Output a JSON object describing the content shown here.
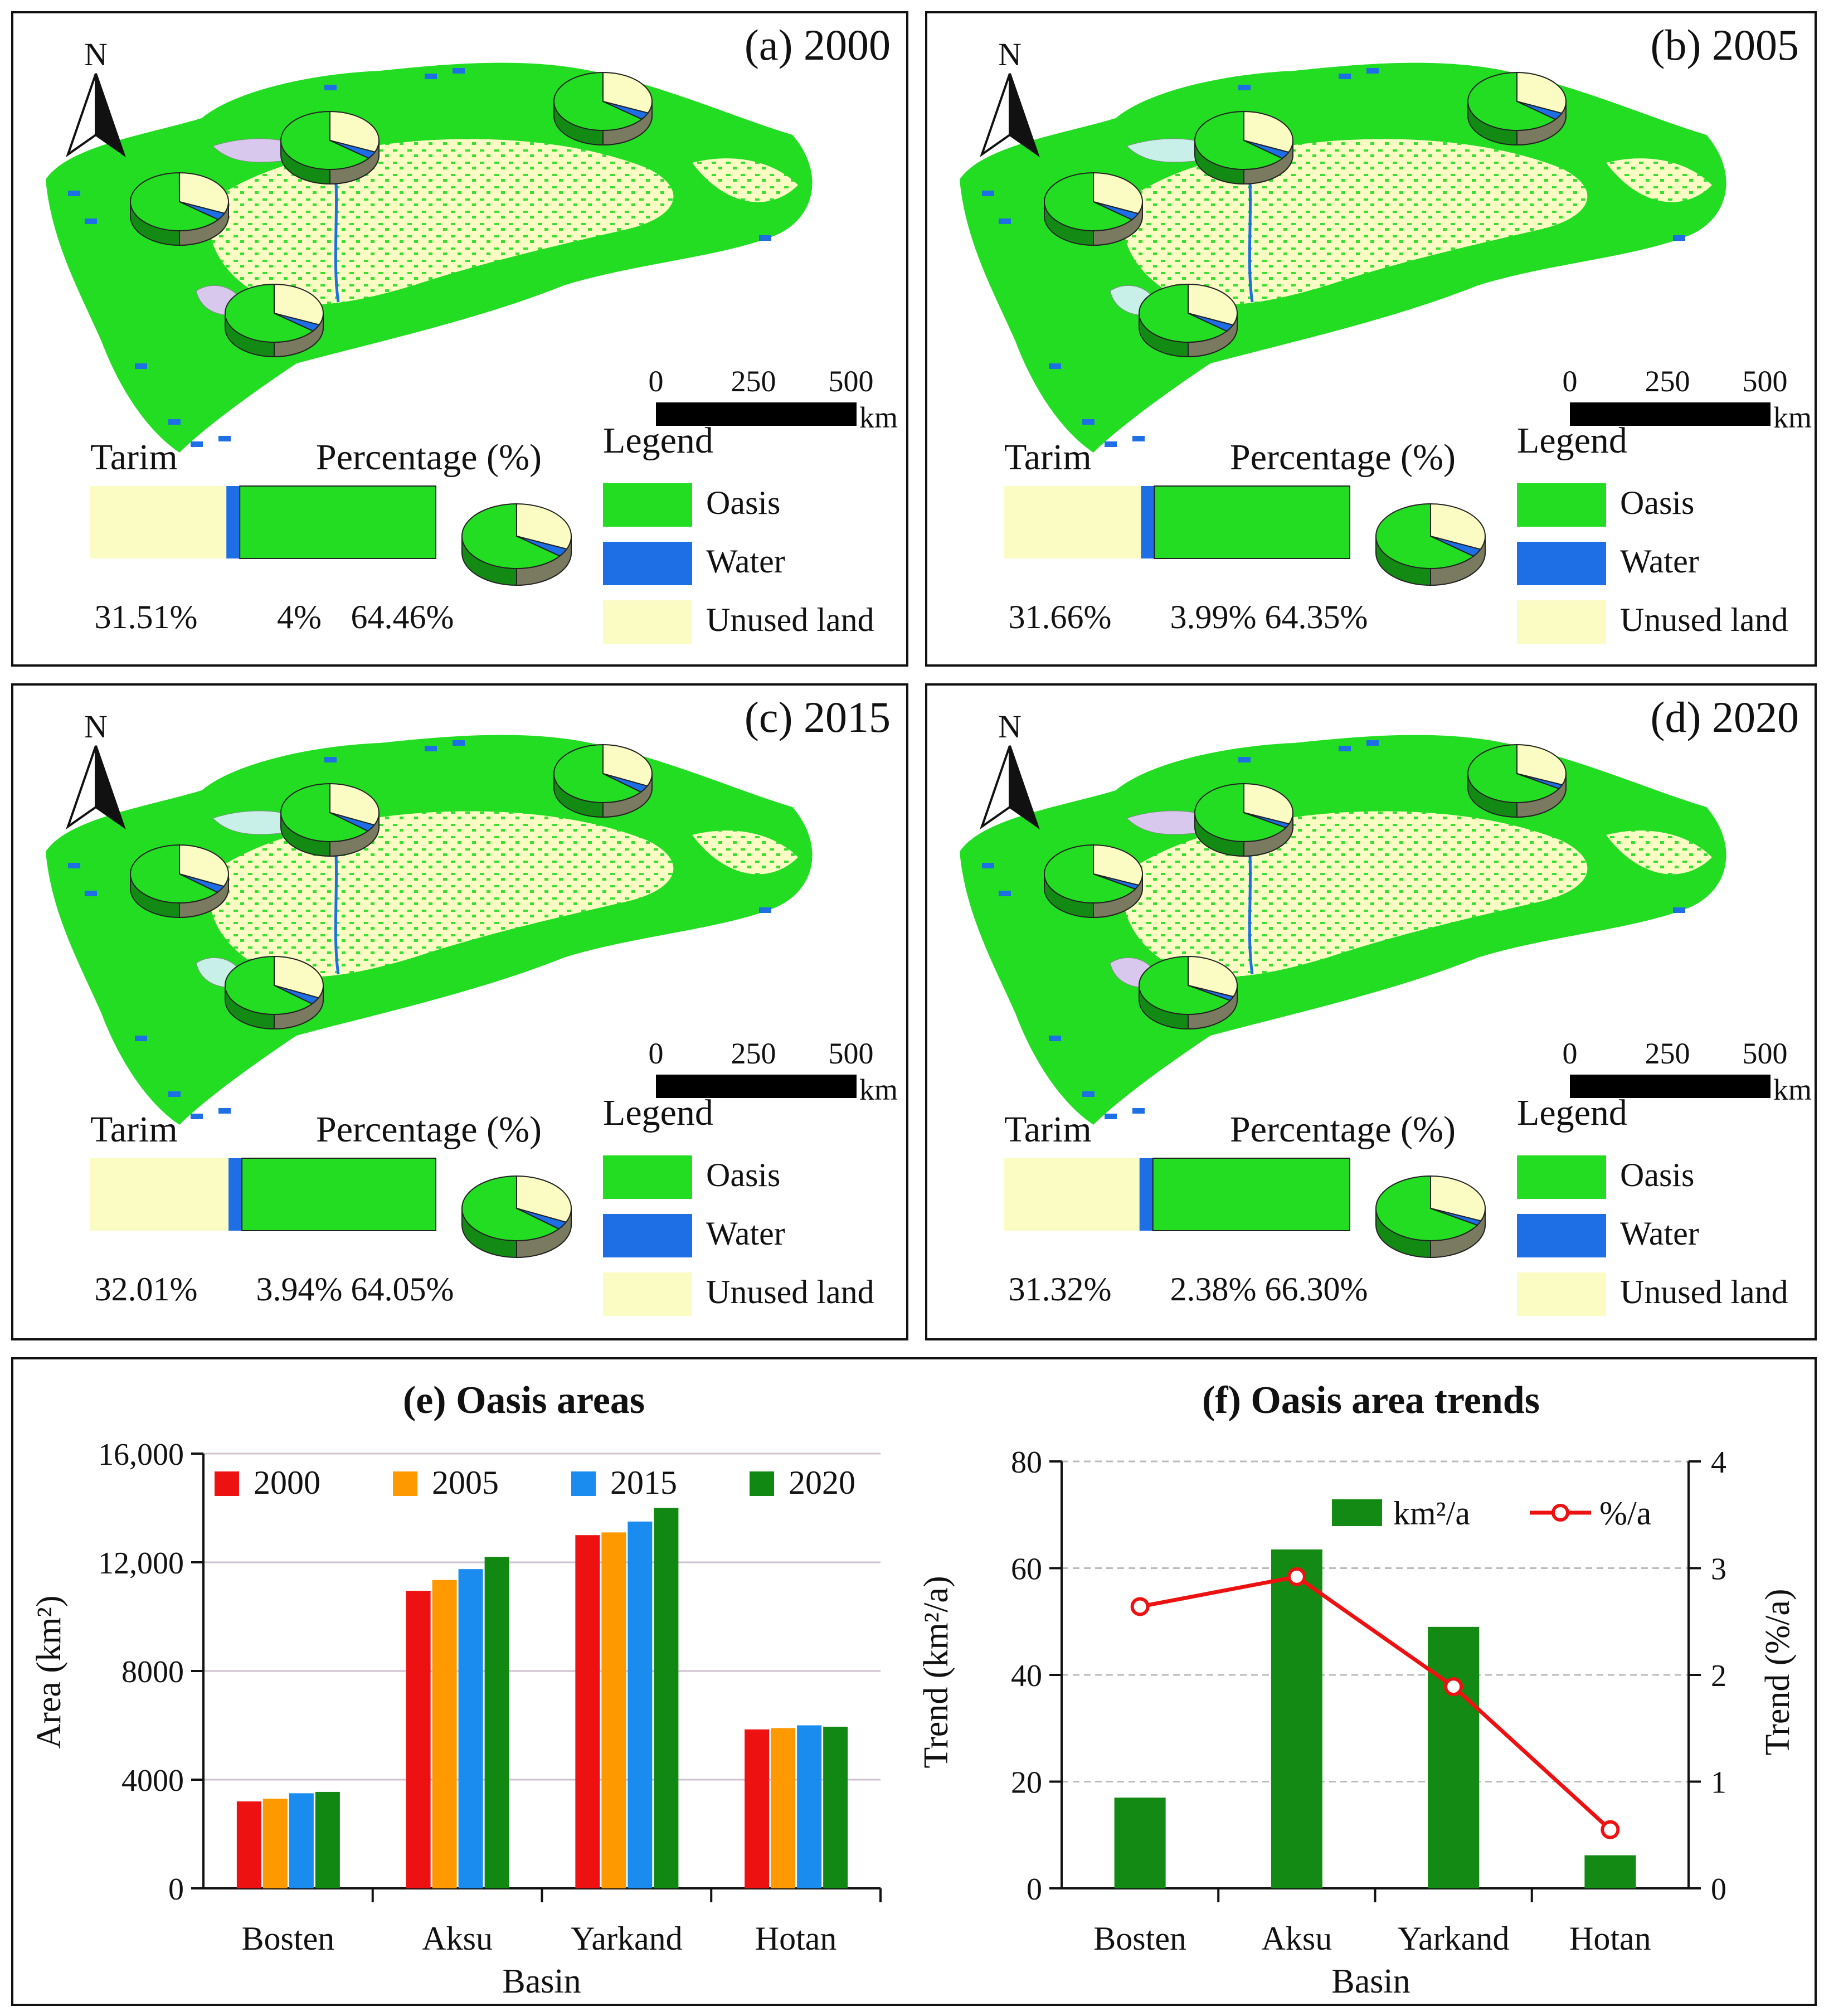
{
  "colors": {
    "oasis": "#22dd22",
    "water": "#1e6fe6",
    "unused": "#fbfbc4",
    "pie_side_oasis": "#138a13",
    "pie_side_water": "#0d3f9a",
    "pie_side_unused": "#7a7a60",
    "bar_2000": "#ee1111",
    "bar_2005": "#ff9900",
    "bar_2015": "#1a8cf0",
    "bar_2020": "#118811",
    "trend_bar": "#138a13",
    "trend_line": "#ee1111",
    "wetland_purple": "#d9c8ee",
    "wetland_cyan": "#c8f0e8"
  },
  "map_panels": [
    {
      "title": "(a) 2000",
      "north": "N",
      "scale": {
        "ticks": [
          "0",
          "250",
          "500"
        ],
        "unit": "km"
      },
      "bar_title": "Tarim",
      "bar_subtitle": "Percentage (%)",
      "legend": {
        "title": "Legend",
        "items": [
          "Oasis",
          "Water",
          "Unused land"
        ]
      },
      "percentages": {
        "unused": 31.51,
        "water": 4,
        "oasis": 64.46
      },
      "labels": [
        "31.51%",
        "4%",
        "64.46%"
      ]
    },
    {
      "title": "(b) 2005",
      "north": "N",
      "scale": {
        "ticks": [
          "0",
          "250",
          "500"
        ],
        "unit": "km"
      },
      "bar_title": "Tarim",
      "bar_subtitle": "Percentage (%)",
      "legend": {
        "title": "Legend",
        "items": [
          "Oasis",
          "Water",
          "Unused land"
        ]
      },
      "percentages": {
        "unused": 31.66,
        "water": 3.99,
        "oasis": 64.35
      },
      "labels": [
        "31.66%",
        "3.99%",
        "64.35%"
      ]
    },
    {
      "title": "(c) 2015",
      "north": "N",
      "scale": {
        "ticks": [
          "0",
          "250",
          "500"
        ],
        "unit": "km"
      },
      "bar_title": "Tarim",
      "bar_subtitle": "Percentage (%)",
      "legend": {
        "title": "Legend",
        "items": [
          "Oasis",
          "Water",
          "Unused land"
        ]
      },
      "percentages": {
        "unused": 32.01,
        "water": 3.94,
        "oasis": 64.05
      },
      "labels": [
        "32.01%",
        "3.94%",
        "64.05%"
      ]
    },
    {
      "title": "(d) 2020",
      "north": "N",
      "scale": {
        "ticks": [
          "0",
          "250",
          "500"
        ],
        "unit": "km"
      },
      "bar_title": "Tarim",
      "bar_subtitle": "Percentage (%)",
      "legend": {
        "title": "Legend",
        "items": [
          "Oasis",
          "Water",
          "Unused land"
        ]
      },
      "percentages": {
        "unused": 31.32,
        "water": 2.38,
        "oasis": 66.3
      },
      "labels": [
        "31.32%",
        "2.38%",
        "66.30%"
      ]
    }
  ],
  "chart_data": [
    {
      "type": "bar",
      "title": "(e) Oasis areas",
      "xlabel": "Basin",
      "ylabel": "Area (km²)",
      "categories": [
        "Bosten",
        "Aksu",
        "Yarkand",
        "Hotan"
      ],
      "ylim": [
        0,
        16000
      ],
      "yticks": [
        0,
        4000,
        8000,
        12000,
        16000
      ],
      "ytick_labels": [
        "0",
        "4000",
        "8000",
        "12,000",
        "16,000"
      ],
      "legend_position": "top",
      "series": [
        {
          "name": "2000",
          "values": [
            3200,
            10950,
            13000,
            5850
          ]
        },
        {
          "name": "2005",
          "values": [
            3300,
            11350,
            13100,
            5900
          ]
        },
        {
          "name": "2015",
          "values": [
            3500,
            11750,
            13500,
            6000
          ]
        },
        {
          "name": "2020",
          "values": [
            3550,
            12200,
            14000,
            5950
          ]
        }
      ]
    },
    {
      "type": "bar",
      "title": "(f) Oasis area trends",
      "xlabel": "Basin",
      "ylabel": "Trend (km²/a)",
      "y2label": "Trend (%/a)",
      "categories": [
        "Bosten",
        "Aksu",
        "Yarkand",
        "Hotan"
      ],
      "ylim": [
        0,
        80
      ],
      "y2lim": [
        0,
        4
      ],
      "yticks": [
        0,
        20,
        40,
        60,
        80
      ],
      "y2ticks": [
        0,
        1,
        2,
        3,
        4
      ],
      "legend_position": "top-right",
      "series": [
        {
          "name": "km²/a",
          "kind": "bar",
          "axis": "left",
          "values": [
            17,
            63.5,
            49,
            6.2
          ]
        },
        {
          "name": "%/a",
          "kind": "line",
          "axis": "right",
          "values": [
            2.64,
            2.92,
            1.89,
            0.55
          ]
        }
      ]
    }
  ]
}
